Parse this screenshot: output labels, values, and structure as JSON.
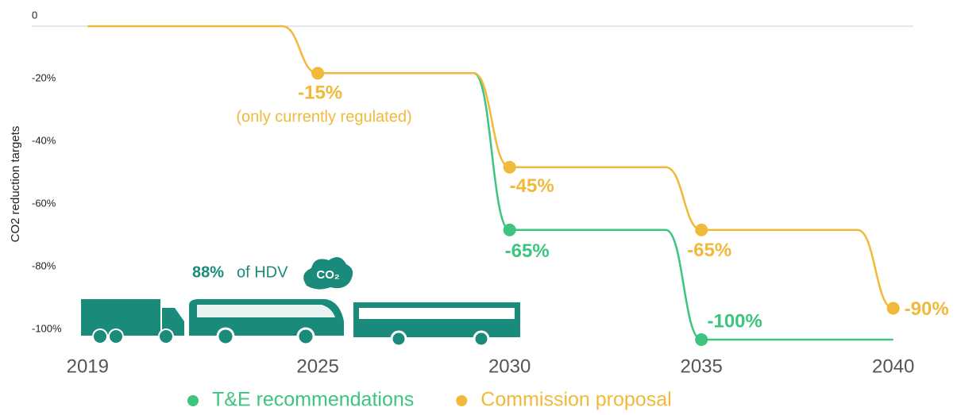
{
  "chart_data": {
    "type": "line",
    "y_label": "CO2 reduction targets",
    "xlim": [
      2018,
      2041
    ],
    "xticks": [
      2019,
      2025,
      2030,
      2035,
      2040
    ],
    "ylim": [
      -100,
      0
    ],
    "yticks": [
      0,
      {
        "value": -20,
        "label": "-20%"
      },
      {
        "value": -40,
        "label": "-40%"
      },
      {
        "value": -60,
        "label": "-60%"
      },
      {
        "value": -80,
        "label": "-80%"
      },
      {
        "value": -100,
        "label": "-100%"
      }
    ],
    "zero_line": true,
    "legend": "bottom",
    "series": [
      {
        "name": "Commission proposal",
        "color": "#f0b93a",
        "x": [
          2019,
          2025,
          2030,
          2035,
          2040
        ],
        "values": [
          0,
          -15,
          -45,
          -65,
          -90
        ],
        "value_labels": [
          null,
          "-15%",
          "-45%",
          "-65%",
          "-90%"
        ]
      },
      {
        "name": "T&E recommendations",
        "color": "#3dc47e",
        "x": [
          2025,
          2030,
          2035,
          2040
        ],
        "values": [
          -15,
          -65,
          -100,
          -100
        ],
        "value_labels": [
          null,
          "-65%",
          "-100%",
          null
        ]
      }
    ],
    "annotations": [
      "(only currently regulated)",
      "88%",
      "of HDV",
      "CO₂"
    ]
  }
}
